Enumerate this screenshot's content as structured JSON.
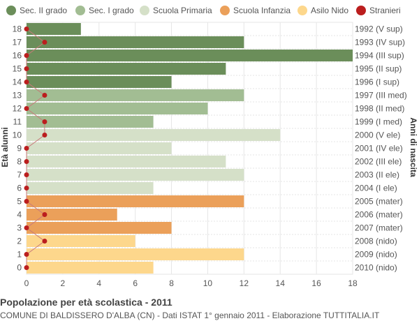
{
  "chart_data": {
    "type": "bar",
    "orientation": "horizontal",
    "xlabel": "",
    "ylabel": "Età alunni",
    "y2label": "Anni di nascita",
    "xlim": [
      0,
      18
    ],
    "xticks": [
      0,
      2,
      4,
      6,
      8,
      10,
      12,
      14,
      16,
      18
    ],
    "grid": true,
    "legend_position": "top",
    "legend": [
      {
        "label": "Sec. II grado",
        "color": "#6b8e5a"
      },
      {
        "label": "Sec. I grado",
        "color": "#a2bd93"
      },
      {
        "label": "Scuola Primaria",
        "color": "#d5e0c8"
      },
      {
        "label": "Scuola Infanzia",
        "color": "#eba05a"
      },
      {
        "label": "Asilo Nido",
        "color": "#fdd78c"
      },
      {
        "label": "Stranieri",
        "color": "#bb1e1e"
      }
    ],
    "rows": [
      {
        "age": "18",
        "birth": "1992 (V sup)",
        "value": 3,
        "stranieri": 0,
        "group": 0
      },
      {
        "age": "17",
        "birth": "1993 (IV sup)",
        "value": 12,
        "stranieri": 1,
        "group": 0
      },
      {
        "age": "16",
        "birth": "1994 (III sup)",
        "value": 18,
        "stranieri": 0,
        "group": 0
      },
      {
        "age": "15",
        "birth": "1995 (II sup)",
        "value": 11,
        "stranieri": 0,
        "group": 0
      },
      {
        "age": "14",
        "birth": "1996 (I sup)",
        "value": 8,
        "stranieri": 0,
        "group": 0
      },
      {
        "age": "13",
        "birth": "1997 (III med)",
        "value": 12,
        "stranieri": 1,
        "group": 1
      },
      {
        "age": "12",
        "birth": "1998 (II med)",
        "value": 10,
        "stranieri": 0,
        "group": 1
      },
      {
        "age": "11",
        "birth": "1999 (I med)",
        "value": 7,
        "stranieri": 1,
        "group": 1
      },
      {
        "age": "10",
        "birth": "2000 (V ele)",
        "value": 14,
        "stranieri": 1,
        "group": 2
      },
      {
        "age": "9",
        "birth": "2001 (IV ele)",
        "value": 8,
        "stranieri": 0,
        "group": 2
      },
      {
        "age": "8",
        "birth": "2002 (III ele)",
        "value": 11,
        "stranieri": 0,
        "group": 2
      },
      {
        "age": "7",
        "birth": "2003 (II ele)",
        "value": 12,
        "stranieri": 0,
        "group": 2
      },
      {
        "age": "6",
        "birth": "2004 (I ele)",
        "value": 7,
        "stranieri": 0,
        "group": 2
      },
      {
        "age": "5",
        "birth": "2005 (mater)",
        "value": 12,
        "stranieri": 0,
        "group": 3
      },
      {
        "age": "4",
        "birth": "2006 (mater)",
        "value": 5,
        "stranieri": 1,
        "group": 3
      },
      {
        "age": "3",
        "birth": "2007 (mater)",
        "value": 8,
        "stranieri": 0,
        "group": 3
      },
      {
        "age": "2",
        "birth": "2008 (nido)",
        "value": 6,
        "stranieri": 1,
        "group": 4
      },
      {
        "age": "1",
        "birth": "2009 (nido)",
        "value": 12,
        "stranieri": 0,
        "group": 4
      },
      {
        "age": "0",
        "birth": "2010 (nido)",
        "value": 7,
        "stranieri": 0,
        "group": 4
      }
    ]
  },
  "footer": {
    "title": "Popolazione per età scolastica - 2011",
    "subtitle": "COMUNE DI BALDISSERO D'ALBA (CN) - Dati ISTAT 1° gennaio 2011 - Elaborazione TUTTITALIA.IT"
  }
}
